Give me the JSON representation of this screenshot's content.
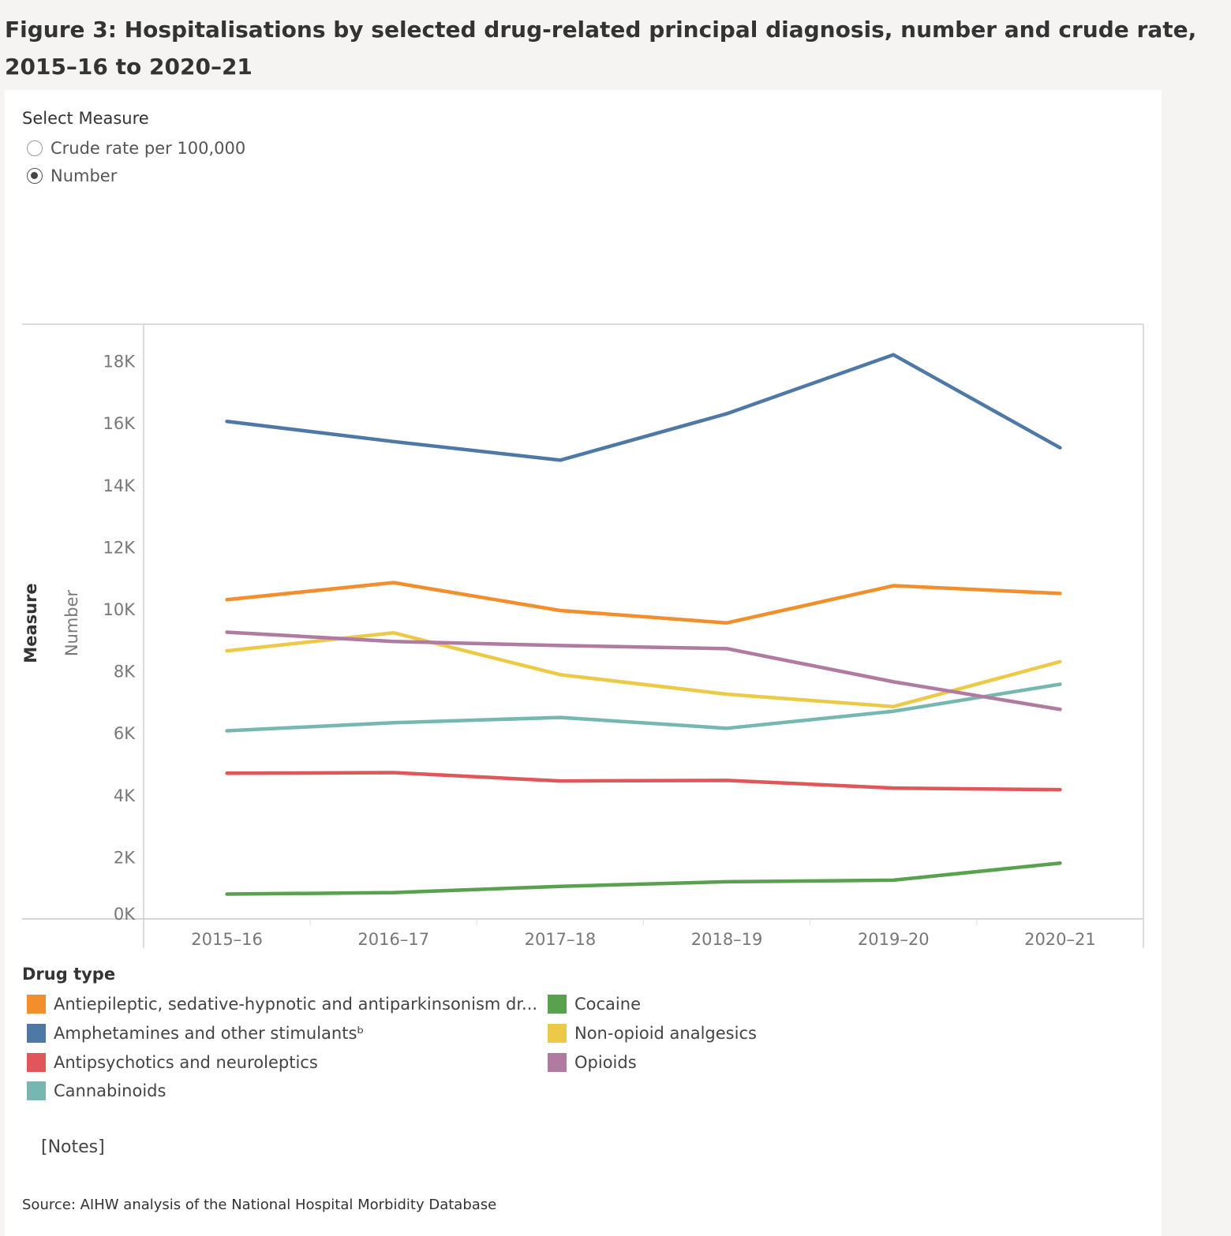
{
  "title": "Figure 3: Hospitalisations by selected drug-related principal diagnosis, number and crude rate, 2015–16 to 2020–21",
  "measure_selector": {
    "title": "Select Measure",
    "options": [
      {
        "label": "Crude rate per 100,000",
        "checked": false
      },
      {
        "label": "Number",
        "checked": true
      }
    ]
  },
  "chart_data": {
    "type": "line",
    "x": [
      "2015–16",
      "2016–17",
      "2017–18",
      "2018–19",
      "2019–20",
      "2020–21"
    ],
    "ylabel_outer": "Measure",
    "ylabel": "Number",
    "ylim": [
      0,
      19000
    ],
    "yticks": [
      0,
      2000,
      4000,
      6000,
      8000,
      10000,
      12000,
      14000,
      16000,
      18000
    ],
    "ytick_labels": [
      "0K",
      "2K",
      "4K",
      "6K",
      "8K",
      "10K",
      "12K",
      "14K",
      "16K",
      "18K"
    ],
    "series": [
      {
        "name": "Antiepileptic, sedative-hypnotic and antiparkinsonism dr...",
        "color": "#f28e2b",
        "values": [
          10300,
          10850,
          9950,
          9550,
          10750,
          10500
        ]
      },
      {
        "name": "Amphetamines and other stimulantsᵇ",
        "color": "#4e79a7",
        "values": [
          16050,
          15400,
          14800,
          16300,
          18200,
          15200
        ]
      },
      {
        "name": "Antipsychotics and neuroleptics",
        "color": "#e15759",
        "values": [
          4700,
          4720,
          4450,
          4470,
          4220,
          4170
        ]
      },
      {
        "name": "Cannabinoids",
        "color": "#76b7b2",
        "values": [
          6070,
          6330,
          6500,
          6150,
          6700,
          7570
        ]
      },
      {
        "name": "Cocaine",
        "color": "#59a14f",
        "values": [
          800,
          850,
          1050,
          1200,
          1250,
          1800
        ]
      },
      {
        "name": "Non-opioid analgesics",
        "color": "#edc948",
        "values": [
          8650,
          9230,
          7880,
          7250,
          6850,
          8300
        ]
      },
      {
        "name": "Opioids",
        "color": "#b07aa1",
        "values": [
          9250,
          8950,
          8820,
          8720,
          7650,
          6760
        ]
      }
    ]
  },
  "legend": {
    "title": "Drug type"
  },
  "notes_label": "[Notes]",
  "source": "Source: AIHW analysis of the National Hospital Morbidity Database"
}
